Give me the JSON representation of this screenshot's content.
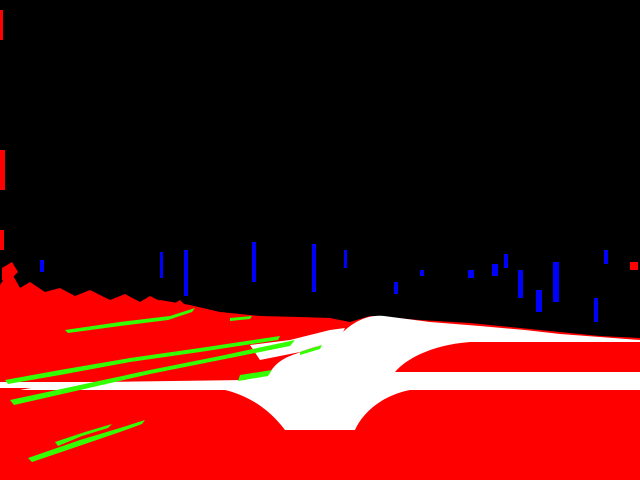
{
  "image": {
    "kind": "segmentation mask",
    "classes": [
      {
        "name": "background",
        "color": "#000000"
      },
      {
        "name": "road-surface",
        "color": "#ff0000"
      },
      {
        "name": "white-region",
        "color": "#ffffff"
      },
      {
        "name": "lane-marking",
        "color": "#33ff00"
      },
      {
        "name": "pole",
        "color": "#0000ff"
      }
    ]
  }
}
